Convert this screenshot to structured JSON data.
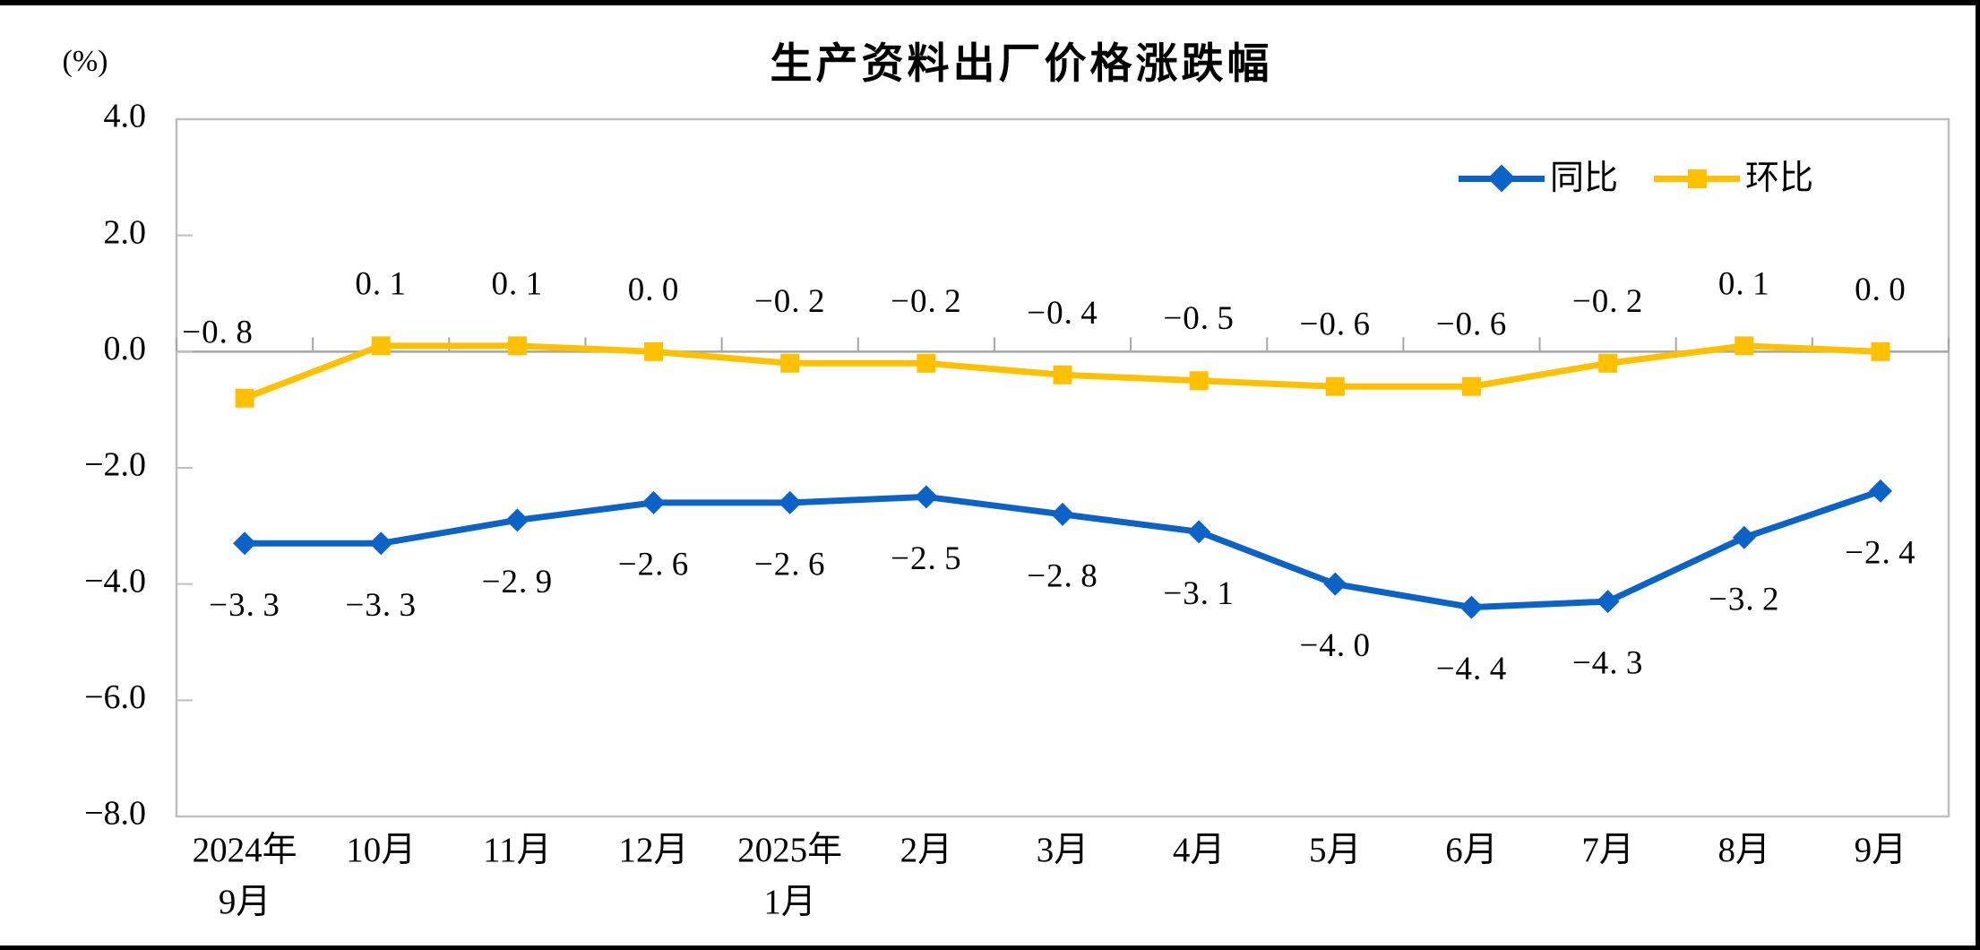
{
  "chart_data": {
    "type": "line",
    "title": "生产资料出厂价格涨跌幅",
    "unit_label": "(%)",
    "categories": [
      [
        "2024年",
        "9月"
      ],
      [
        "10月"
      ],
      [
        "11月"
      ],
      [
        "12月"
      ],
      [
        "2025年",
        "1月"
      ],
      [
        "2月"
      ],
      [
        "3月"
      ],
      [
        "4月"
      ],
      [
        "5月"
      ],
      [
        "6月"
      ],
      [
        "7月"
      ],
      [
        "8月"
      ],
      [
        "9月"
      ]
    ],
    "y_axis": {
      "min": -8.0,
      "max": 4.0,
      "step": 2.0,
      "tick_labels": [
        "4.0",
        "2.0",
        "0.0",
        "-2.0",
        "-4.0",
        "-6.0",
        "-8.0"
      ]
    },
    "series": [
      {
        "name": "同比",
        "color": "#0C63C7",
        "marker": "diamond",
        "label_position": "below",
        "values": [
          -3.3,
          -3.3,
          -2.9,
          -2.6,
          -2.6,
          -2.5,
          -2.8,
          -3.1,
          -4.0,
          -4.4,
          -4.3,
          -3.2,
          -2.4
        ],
        "data_labels": [
          "-3.3",
          "-3.3",
          "-2.9",
          "-2.6",
          "-2.6",
          "-2.5",
          "-2.8",
          "-3.1",
          "-4.0",
          "-4.4",
          "-4.3",
          "-3.2",
          "-2.4"
        ]
      },
      {
        "name": "环比",
        "color": "#FFC000",
        "marker": "square",
        "label_position": "above",
        "values": [
          -0.8,
          0.1,
          0.1,
          0.0,
          -0.2,
          -0.2,
          -0.4,
          -0.5,
          -0.6,
          -0.6,
          -0.2,
          0.1,
          0.0
        ],
        "data_labels": [
          "-0.8",
          "0.1",
          "0.1",
          "0.0",
          "-0.2",
          "-0.2",
          "-0.4",
          "-0.5",
          "-0.6",
          "-0.6",
          "-0.2",
          "0.1",
          "0.0"
        ]
      }
    ],
    "legend": {
      "position": "top-right-inside",
      "entries": [
        "同比",
        "环比"
      ]
    },
    "grid": "zero-line-only",
    "colors": {
      "plot_border": "#BFBFBF",
      "zero_line": "#A6A6A6",
      "tick": "#A6A6A6",
      "text": "#000000",
      "frame_border": "#000000",
      "background": "#FFFFFF"
    }
  }
}
